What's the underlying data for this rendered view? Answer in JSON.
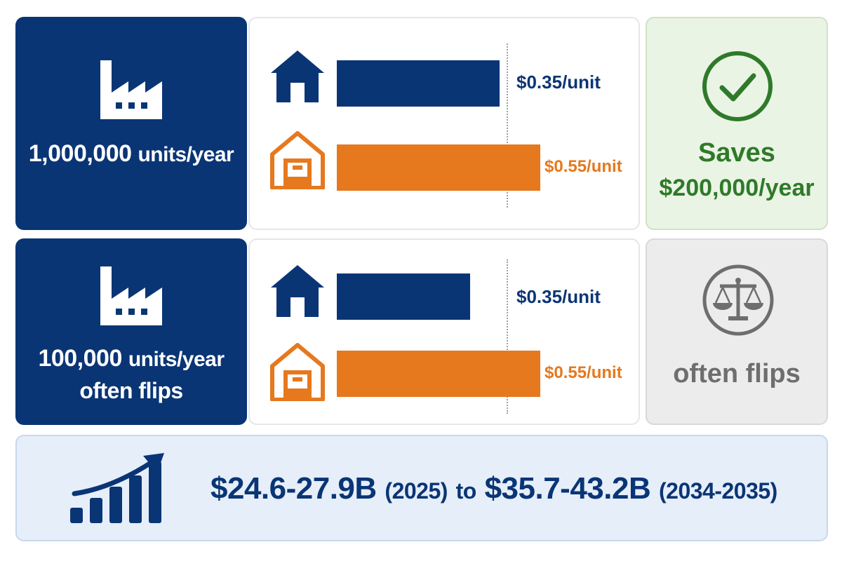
{
  "rows": [
    {
      "volume_main": "1,000,000",
      "volume_unit": "units/year",
      "volume_line2": "",
      "in_house_cost": "$0.35/unit",
      "outsourced_cost": "$0.55/unit",
      "verdict_line1": "Saves",
      "verdict_line2": "$200,000/year",
      "verdict_icon": "checkmark-circle-icon"
    },
    {
      "volume_main": "100,000",
      "volume_unit": "units/year",
      "volume_line2": "often flips",
      "in_house_cost": "$0.35/unit",
      "outsourced_cost": "$0.55/unit",
      "verdict_line1": "often flips",
      "verdict_icon": "balance-scale-icon"
    }
  ],
  "market": {
    "start_value": "$24.6-27.9B",
    "start_year": "(2025)",
    "connector": "to",
    "end_value": "$35.7-43.2B",
    "end_year": "(2034-2035)",
    "icon": "growth-chart-icon"
  },
  "colors": {
    "navy": "#0a3575",
    "orange": "#e6781e",
    "green": "#2f7a2a",
    "gray": "#6e6e6e"
  }
}
